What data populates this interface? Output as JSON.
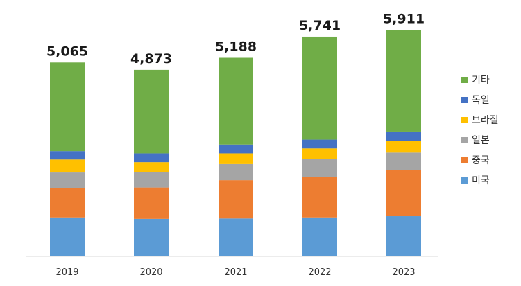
{
  "chart_data": {
    "type": "bar",
    "stacked": true,
    "categories": [
      "2019",
      "2020",
      "2021",
      "2022",
      "2023"
    ],
    "totals": [
      "5,065",
      "4,873",
      "5,188",
      "5,741",
      "5,911"
    ],
    "total_values": [
      5065,
      4873,
      5188,
      5741,
      5911
    ],
    "series": [
      {
        "name": "미국",
        "color": "#5b9bd5",
        "values": [
          1000,
          980,
          990,
          1000,
          1050
        ]
      },
      {
        "name": "중국",
        "color": "#ed7d31",
        "values": [
          790,
          820,
          1000,
          1080,
          1200
        ]
      },
      {
        "name": "일본",
        "color": "#a5a5a5",
        "values": [
          400,
          400,
          420,
          460,
          460
        ]
      },
      {
        "name": "브라질",
        "color": "#ffc000",
        "values": [
          340,
          260,
          280,
          280,
          300
        ]
      },
      {
        "name": "독일",
        "color": "#4472c4",
        "values": [
          220,
          230,
          230,
          230,
          250
        ]
      },
      {
        "name": "기타",
        "color": "#70ad47",
        "values": [
          2315,
          2183,
          2268,
          2691,
          2651
        ]
      }
    ],
    "legend_position": "right",
    "legend_order": [
      "기타",
      "독일",
      "브라질",
      "일본",
      "중국",
      "미국"
    ],
    "grid": false,
    "ylim": [
      0,
      6700
    ]
  }
}
